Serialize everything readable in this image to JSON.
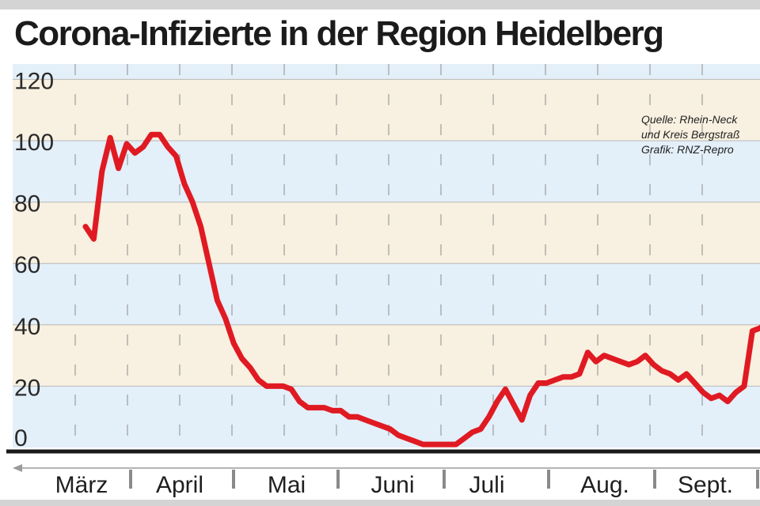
{
  "header": {
    "title": "Corona-Infizierte in der Region Heidelberg"
  },
  "source_note": [
    "Quelle: Rhein-Neck",
    "und Kreis Bergstraß",
    "Grafik: RNZ-Repro"
  ],
  "colors": {
    "band_blue": "#e3eff9",
    "band_beige": "#f8f0e0",
    "line": "#e01a22",
    "axis": "#1a1a1a"
  },
  "chart_data": {
    "type": "line",
    "title": "Corona-Infizierte in der Region Heidelberg",
    "xlabel": "",
    "ylabel": "",
    "ylim": [
      0,
      125
    ],
    "yticks": [
      0,
      20,
      40,
      60,
      80,
      100,
      120
    ],
    "months": [
      "März",
      "April",
      "Mai",
      "Juni",
      "Juli",
      "Aug.",
      "Sept."
    ],
    "legend": "none",
    "grid": true,
    "series": [
      {
        "values": [
          72,
          68,
          90,
          101,
          91,
          99,
          96,
          98,
          102,
          102,
          98,
          95,
          86,
          80,
          72,
          60,
          48,
          42,
          34,
          29,
          26,
          22,
          20,
          20,
          20,
          19,
          15,
          13,
          13,
          13,
          12,
          12,
          10,
          10,
          9,
          8,
          7,
          6,
          4,
          3,
          2,
          1,
          1,
          1,
          1,
          1,
          3,
          5,
          6,
          10,
          15,
          19,
          14,
          9,
          17,
          21,
          21,
          22,
          23,
          23,
          24,
          31,
          28,
          30,
          29,
          28,
          27,
          28,
          30,
          27,
          25,
          24,
          22,
          24,
          21,
          18,
          16,
          17,
          15,
          18,
          20,
          38,
          39,
          42
        ]
      }
    ]
  }
}
